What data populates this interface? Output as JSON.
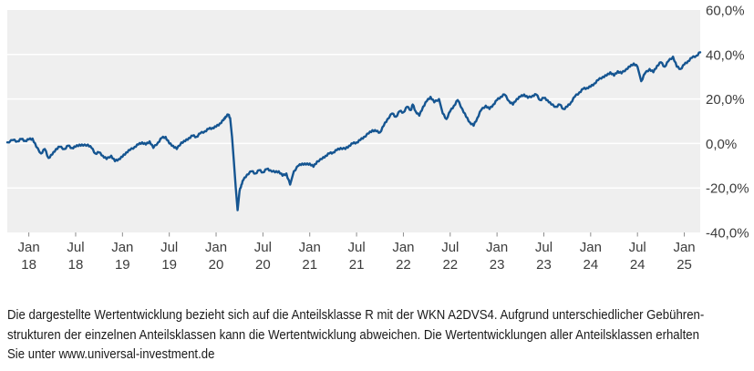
{
  "footer": {
    "line1": "Die dargestellte Wertentwicklung bezieht sich auf die Anteilsklasse R mit der WKN A2DVS4. Aufgrund unterschiedlicher Gebühren-",
    "line2": "strukturen der einzelnen Anteilsklassen kann die Wertentwicklung abweichen. Die Wertentwicklungen aller Anteilsklassen erhalten",
    "line3": "Sie unter www.universal-investment.de"
  },
  "chart_data": {
    "type": "line",
    "title": "",
    "xlabel": "",
    "ylabel": "",
    "x_range": [
      2017.77,
      2025.17
    ],
    "y_range": [
      -40,
      60
    ],
    "grid": "horizontal-only",
    "legend": "none",
    "axis_side": "right",
    "colors": {
      "line": "#155591",
      "plot_bg": "#efefef",
      "grid": "#ffffff",
      "tick": "#8c8c8c",
      "label": "#3c3c3c"
    },
    "y_ticks": [
      {
        "label": "60,0%",
        "value": 60
      },
      {
        "label": "40,0%",
        "value": 40
      },
      {
        "label": "20,0%",
        "value": 20
      },
      {
        "label": "0,0%",
        "value": 0
      },
      {
        "label": "-20,0%",
        "value": -20
      },
      {
        "label": "-40,0%",
        "value": -40
      }
    ],
    "grid_values": [
      40,
      20,
      0,
      -20
    ],
    "x_ticks": [
      {
        "month": "Jan",
        "year": "18",
        "t": 2018.0
      },
      {
        "month": "Jul",
        "year": "18",
        "t": 2018.5
      },
      {
        "month": "Jan",
        "year": "19",
        "t": 2019.0
      },
      {
        "month": "Jul",
        "year": "19",
        "t": 2019.5
      },
      {
        "month": "Jan",
        "year": "20",
        "t": 2020.0
      },
      {
        "month": "Jul",
        "year": "20",
        "t": 2020.5
      },
      {
        "month": "Jan",
        "year": "21",
        "t": 2021.0
      },
      {
        "month": "Jul",
        "year": "21",
        "t": 2021.5
      },
      {
        "month": "Jan",
        "year": "22",
        "t": 2022.0
      },
      {
        "month": "Jul",
        "year": "22",
        "t": 2022.5
      },
      {
        "month": "Jan",
        "year": "23",
        "t": 2023.0
      },
      {
        "month": "Jul",
        "year": "23",
        "t": 2023.5
      },
      {
        "month": "Jan",
        "year": "24",
        "t": 2024.0
      },
      {
        "month": "Jul",
        "year": "24",
        "t": 2024.5
      },
      {
        "month": "Jan",
        "year": "25",
        "t": 2025.0
      }
    ],
    "series": [
      {
        "name": "Wertentwicklung Anteilsklasse R (WKN A2DVS4)",
        "unit": "%",
        "points": [
          [
            2017.77,
            0.5
          ],
          [
            2017.83,
            1.5
          ],
          [
            2017.88,
            1.0
          ],
          [
            2017.92,
            2.0
          ],
          [
            2017.96,
            1.2
          ],
          [
            2018.0,
            1.8
          ],
          [
            2018.04,
            2.2
          ],
          [
            2018.08,
            -1.5
          ],
          [
            2018.13,
            -4.5
          ],
          [
            2018.17,
            -2.5
          ],
          [
            2018.21,
            -6.5
          ],
          [
            2018.25,
            -5.0
          ],
          [
            2018.29,
            -2.5
          ],
          [
            2018.33,
            -1.5
          ],
          [
            2018.38,
            -2.5
          ],
          [
            2018.42,
            -1.0
          ],
          [
            2018.46,
            -2.0
          ],
          [
            2018.5,
            -1.5
          ],
          [
            2018.54,
            -0.5
          ],
          [
            2018.58,
            -1.0
          ],
          [
            2018.63,
            -0.5
          ],
          [
            2018.67,
            -2.0
          ],
          [
            2018.71,
            -4.5
          ],
          [
            2018.75,
            -4.0
          ],
          [
            2018.79,
            -5.5
          ],
          [
            2018.83,
            -7.0
          ],
          [
            2018.88,
            -5.5
          ],
          [
            2018.92,
            -8.0
          ],
          [
            2018.96,
            -7.0
          ],
          [
            2019.0,
            -6.0
          ],
          [
            2019.04,
            -4.0
          ],
          [
            2019.08,
            -3.0
          ],
          [
            2019.13,
            -1.5
          ],
          [
            2019.17,
            -0.5
          ],
          [
            2019.21,
            0.5
          ],
          [
            2019.25,
            -0.5
          ],
          [
            2019.29,
            1.0
          ],
          [
            2019.33,
            -2.0
          ],
          [
            2019.38,
            0.5
          ],
          [
            2019.42,
            2.5
          ],
          [
            2019.46,
            3.0
          ],
          [
            2019.5,
            0.0
          ],
          [
            2019.54,
            -1.0
          ],
          [
            2019.58,
            -2.5
          ],
          [
            2019.63,
            0.5
          ],
          [
            2019.67,
            1.0
          ],
          [
            2019.71,
            2.5
          ],
          [
            2019.75,
            3.5
          ],
          [
            2019.79,
            3.0
          ],
          [
            2019.83,
            4.5
          ],
          [
            2019.88,
            5.5
          ],
          [
            2019.92,
            6.5
          ],
          [
            2019.96,
            7.0
          ],
          [
            2020.0,
            7.5
          ],
          [
            2020.04,
            9.0
          ],
          [
            2020.08,
            10.5
          ],
          [
            2020.1,
            12.0
          ],
          [
            2020.13,
            13.0
          ],
          [
            2020.15,
            11.5
          ],
          [
            2020.17,
            3.0
          ],
          [
            2020.19,
            -8.0
          ],
          [
            2020.21,
            -20.0
          ],
          [
            2020.23,
            -30.0
          ],
          [
            2020.25,
            -21.5
          ],
          [
            2020.27,
            -18.5
          ],
          [
            2020.29,
            -16.5
          ],
          [
            2020.33,
            -14.0
          ],
          [
            2020.38,
            -12.5
          ],
          [
            2020.42,
            -13.5
          ],
          [
            2020.46,
            -12.0
          ],
          [
            2020.5,
            -13.0
          ],
          [
            2020.54,
            -11.5
          ],
          [
            2020.58,
            -12.0
          ],
          [
            2020.63,
            -13.0
          ],
          [
            2020.67,
            -12.5
          ],
          [
            2020.71,
            -14.5
          ],
          [
            2020.75,
            -13.5
          ],
          [
            2020.79,
            -18.5
          ],
          [
            2020.83,
            -12.5
          ],
          [
            2020.88,
            -10.0
          ],
          [
            2020.92,
            -9.0
          ],
          [
            2020.96,
            -9.5
          ],
          [
            2021.0,
            -9.0
          ],
          [
            2021.04,
            -10.5
          ],
          [
            2021.08,
            -8.0
          ],
          [
            2021.13,
            -7.0
          ],
          [
            2021.17,
            -5.5
          ],
          [
            2021.21,
            -4.5
          ],
          [
            2021.25,
            -4.0
          ],
          [
            2021.29,
            -3.0
          ],
          [
            2021.33,
            -2.0
          ],
          [
            2021.38,
            -2.5
          ],
          [
            2021.42,
            -1.0
          ],
          [
            2021.46,
            0.0
          ],
          [
            2021.5,
            0.5
          ],
          [
            2021.54,
            1.5
          ],
          [
            2021.58,
            3.0
          ],
          [
            2021.63,
            4.5
          ],
          [
            2021.67,
            6.0
          ],
          [
            2021.71,
            5.5
          ],
          [
            2021.75,
            5.0
          ],
          [
            2021.79,
            8.0
          ],
          [
            2021.83,
            11.0
          ],
          [
            2021.88,
            13.5
          ],
          [
            2021.92,
            12.0
          ],
          [
            2021.96,
            14.5
          ],
          [
            2022.0,
            14.0
          ],
          [
            2022.04,
            16.5
          ],
          [
            2022.08,
            15.0
          ],
          [
            2022.1,
            17.5
          ],
          [
            2022.13,
            14.5
          ],
          [
            2022.17,
            12.5
          ],
          [
            2022.21,
            16.5
          ],
          [
            2022.25,
            19.0
          ],
          [
            2022.29,
            21.0
          ],
          [
            2022.33,
            18.5
          ],
          [
            2022.38,
            20.0
          ],
          [
            2022.42,
            13.5
          ],
          [
            2022.46,
            11.0
          ],
          [
            2022.5,
            14.5
          ],
          [
            2022.54,
            17.0
          ],
          [
            2022.58,
            19.5
          ],
          [
            2022.63,
            15.5
          ],
          [
            2022.67,
            12.0
          ],
          [
            2022.71,
            9.5
          ],
          [
            2022.75,
            8.0
          ],
          [
            2022.79,
            11.5
          ],
          [
            2022.83,
            15.0
          ],
          [
            2022.88,
            17.0
          ],
          [
            2022.92,
            15.5
          ],
          [
            2022.96,
            17.5
          ],
          [
            2023.0,
            19.5
          ],
          [
            2023.04,
            21.0
          ],
          [
            2023.08,
            22.0
          ],
          [
            2023.13,
            19.0
          ],
          [
            2023.17,
            17.5
          ],
          [
            2023.21,
            20.0
          ],
          [
            2023.25,
            21.0
          ],
          [
            2023.29,
            22.0
          ],
          [
            2023.33,
            20.5
          ],
          [
            2023.38,
            21.5
          ],
          [
            2023.42,
            22.0
          ],
          [
            2023.46,
            19.5
          ],
          [
            2023.5,
            20.5
          ],
          [
            2023.54,
            19.5
          ],
          [
            2023.58,
            17.5
          ],
          [
            2023.63,
            16.5
          ],
          [
            2023.67,
            17.5
          ],
          [
            2023.71,
            15.5
          ],
          [
            2023.75,
            16.5
          ],
          [
            2023.79,
            18.5
          ],
          [
            2023.83,
            21.0
          ],
          [
            2023.88,
            23.0
          ],
          [
            2023.92,
            24.5
          ],
          [
            2023.96,
            25.0
          ],
          [
            2024.0,
            25.5
          ],
          [
            2024.04,
            27.0
          ],
          [
            2024.08,
            28.5
          ],
          [
            2024.13,
            30.0
          ],
          [
            2024.17,
            30.5
          ],
          [
            2024.21,
            32.0
          ],
          [
            2024.25,
            30.5
          ],
          [
            2024.29,
            32.5
          ],
          [
            2024.33,
            31.5
          ],
          [
            2024.38,
            33.5
          ],
          [
            2024.42,
            34.5
          ],
          [
            2024.46,
            36.0
          ],
          [
            2024.5,
            34.5
          ],
          [
            2024.54,
            28.0
          ],
          [
            2024.58,
            31.5
          ],
          [
            2024.63,
            33.5
          ],
          [
            2024.67,
            32.0
          ],
          [
            2024.71,
            35.0
          ],
          [
            2024.75,
            36.5
          ],
          [
            2024.79,
            34.5
          ],
          [
            2024.83,
            37.0
          ],
          [
            2024.88,
            39.0
          ],
          [
            2024.92,
            34.5
          ],
          [
            2024.96,
            33.5
          ],
          [
            2025.0,
            35.5
          ],
          [
            2025.04,
            37.0
          ],
          [
            2025.08,
            38.5
          ],
          [
            2025.13,
            39.5
          ],
          [
            2025.17,
            41.0
          ]
        ]
      }
    ]
  }
}
